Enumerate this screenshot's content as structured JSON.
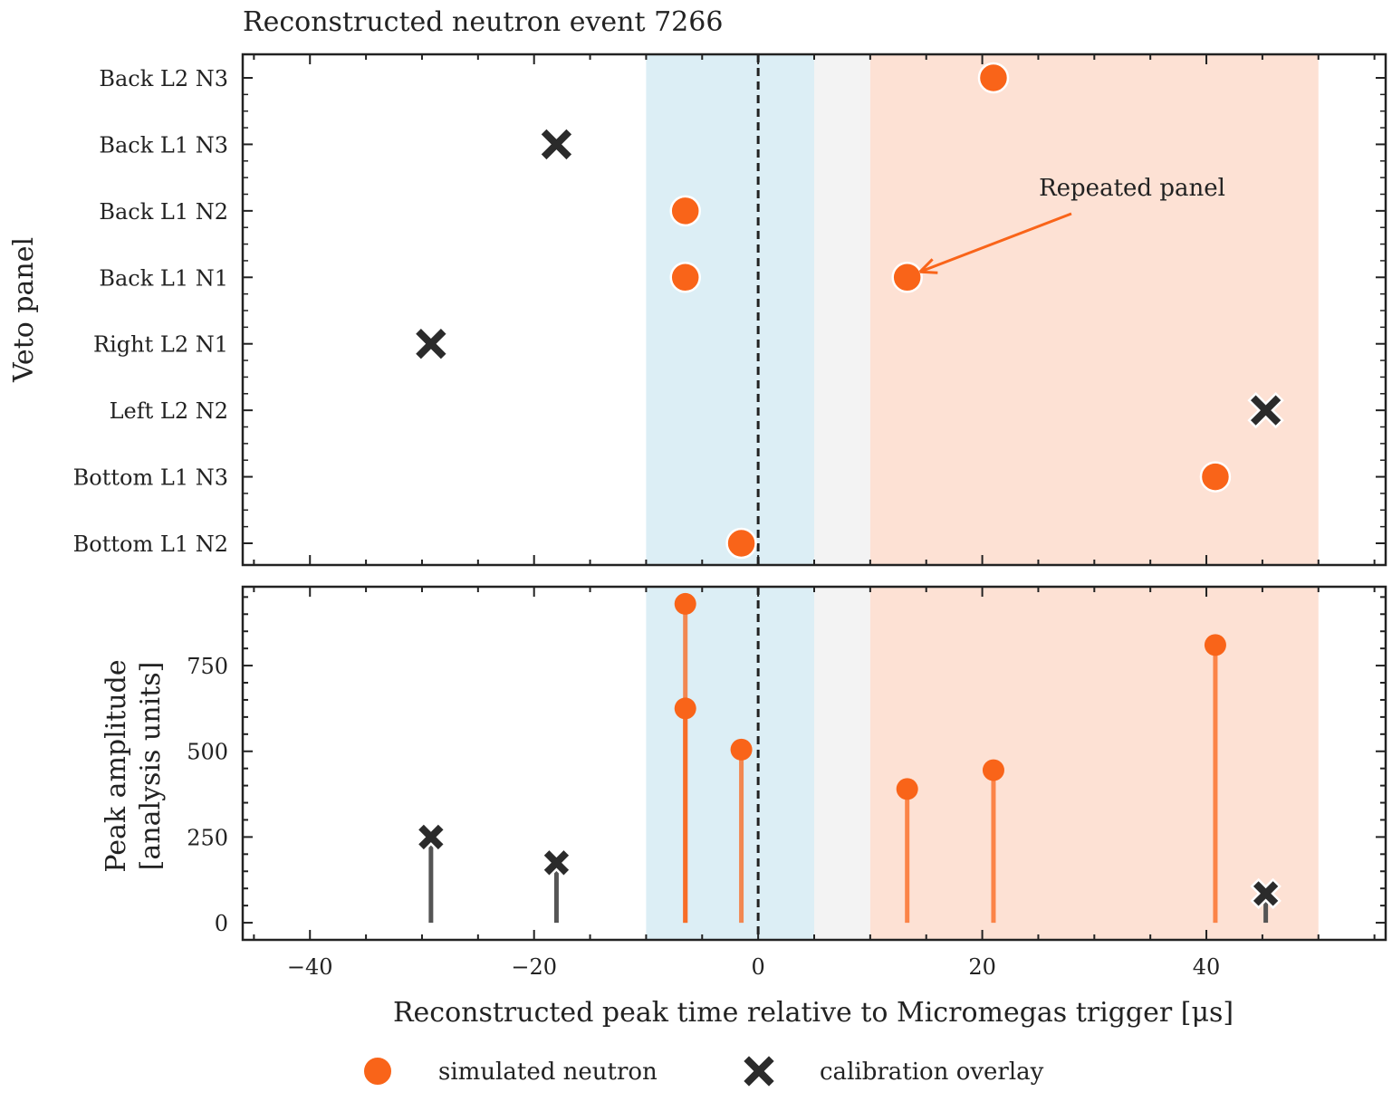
{
  "chart_data": {
    "type": "scatter",
    "title": "Reconstructed neutron event 7266",
    "xlabel": "Reconstructed peak time relative to Micromegas trigger [μs]",
    "xlim": [
      -46,
      56
    ],
    "xticks": [
      -40,
      -20,
      0,
      20,
      40
    ],
    "xtick_labels": [
      "−40",
      "−20",
      "0",
      "20",
      "40"
    ],
    "trigger_line_x": 0,
    "shaded_regions": [
      {
        "x": [
          -10,
          5
        ],
        "color": "#dceef5"
      },
      {
        "x": [
          5,
          10
        ],
        "color": "#f3f3f3"
      },
      {
        "x": [
          10,
          50
        ],
        "color": "#fde1d4"
      }
    ],
    "panels": [
      {
        "name": "top",
        "ylabel": "Veto panel",
        "categories": [
          "Back L2 N3",
          "Back L1 N3",
          "Back L1 N2",
          "Back L1 N1",
          "Right L2 N1",
          "Left L2 N2",
          "Bottom L1 N3",
          "Bottom L1 N2"
        ],
        "series": [
          {
            "name": "simulated neutron",
            "marker": "circle",
            "color": "#f96419",
            "points": [
              {
                "x": 21.0,
                "y": "Back L2 N3"
              },
              {
                "x": -6.5,
                "y": "Back L1 N2"
              },
              {
                "x": -6.5,
                "y": "Back L1 N1"
              },
              {
                "x": 13.3,
                "y": "Back L1 N1"
              },
              {
                "x": 40.8,
                "y": "Bottom L1 N3"
              },
              {
                "x": -1.5,
                "y": "Bottom L1 N2"
              }
            ]
          },
          {
            "name": "calibration overlay",
            "marker": "x",
            "color": "#2b2b2b",
            "points": [
              {
                "x": -18.0,
                "y": "Back L1 N3"
              },
              {
                "x": -29.2,
                "y": "Right L2 N1"
              },
              {
                "x": 45.3,
                "y": "Left L2 N2"
              }
            ]
          }
        ],
        "annotation": {
          "text": "Repeated panel",
          "target": {
            "x": 13.3,
            "y": "Back L1 N1"
          },
          "color": "#f96419"
        }
      },
      {
        "name": "bottom",
        "ylabel": [
          "Peak amplitude",
          "[analysis units]"
        ],
        "ylim": [
          -50,
          980
        ],
        "yticks": [
          0,
          250,
          500,
          750
        ],
        "series": [
          {
            "name": "simulated neutron",
            "marker": "circle",
            "color": "#f96419",
            "points": [
              {
                "x": -6.5,
                "y": 930
              },
              {
                "x": -6.5,
                "y": 625
              },
              {
                "x": -1.5,
                "y": 505
              },
              {
                "x": 13.3,
                "y": 390
              },
              {
                "x": 21.0,
                "y": 445
              },
              {
                "x": 40.8,
                "y": 810
              }
            ]
          },
          {
            "name": "calibration overlay",
            "marker": "x",
            "color": "#2b2b2b",
            "points": [
              {
                "x": -29.2,
                "y": 250
              },
              {
                "x": -18.0,
                "y": 175
              },
              {
                "x": 45.3,
                "y": 85
              }
            ]
          }
        ]
      }
    ],
    "legend": {
      "position": "bottom",
      "entries": [
        {
          "label": "simulated neutron",
          "marker": "circle",
          "color": "#f96419"
        },
        {
          "label": "calibration overlay",
          "marker": "x",
          "color": "#2b2b2b"
        }
      ]
    }
  }
}
